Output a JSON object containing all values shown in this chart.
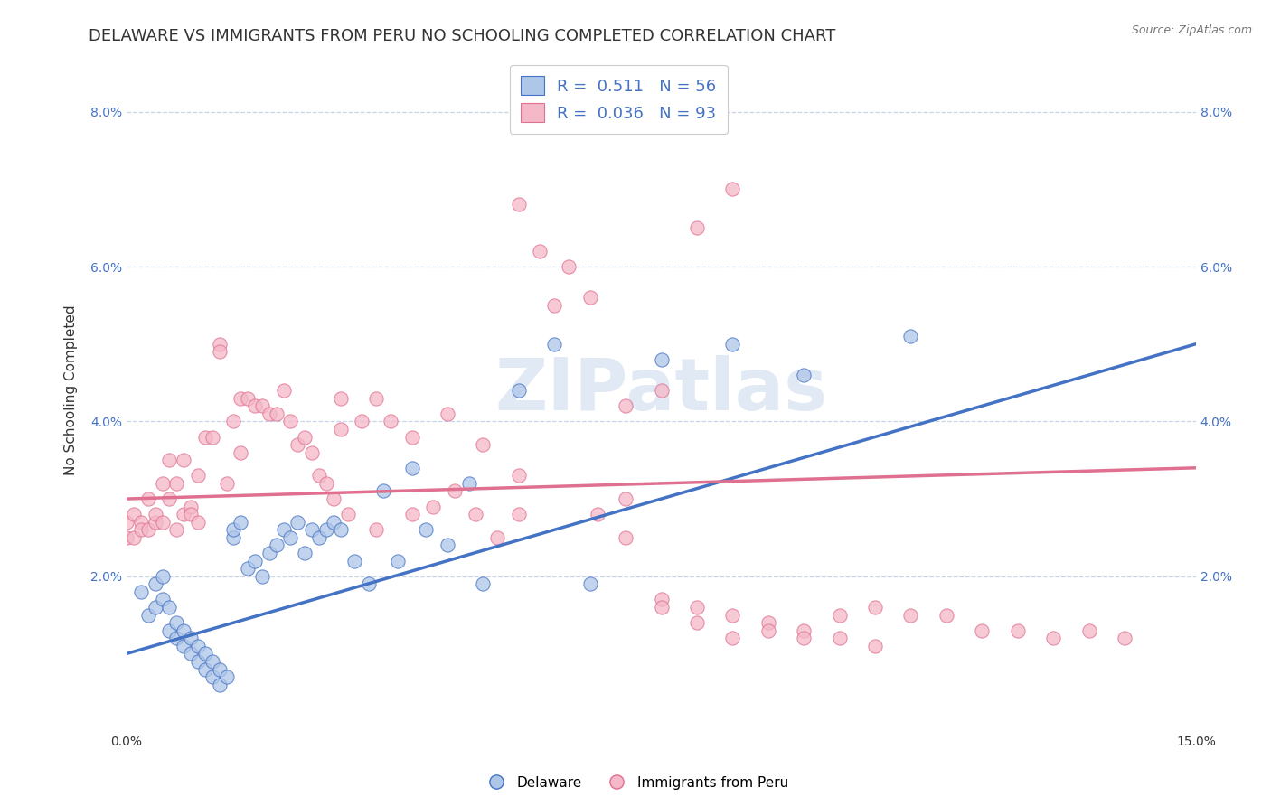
{
  "title": "DELAWARE VS IMMIGRANTS FROM PERU NO SCHOOLING COMPLETED CORRELATION CHART",
  "source": "Source: ZipAtlas.com",
  "ylabel": "No Schooling Completed",
  "xmin": 0.0,
  "xmax": 0.15,
  "ymin": 0.0,
  "ymax": 0.088,
  "yticks": [
    0.02,
    0.04,
    0.06,
    0.08
  ],
  "ytick_labels": [
    "2.0%",
    "4.0%",
    "6.0%",
    "8.0%"
  ],
  "blue_R": 0.511,
  "blue_N": 56,
  "pink_R": 0.036,
  "pink_N": 93,
  "blue_color": "#aec6e8",
  "blue_line_color": "#4472c4",
  "pink_color": "#f4b8c8",
  "pink_line_color": "#e07090",
  "watermark": "ZIPatlas",
  "title_fontsize": 13,
  "axis_label_fontsize": 11,
  "tick_fontsize": 10,
  "background_color": "#ffffff",
  "grid_color": "#c8d4e8",
  "blue_line_start_y": 0.01,
  "blue_line_end_y": 0.05,
  "pink_line_start_y": 0.03,
  "pink_line_end_y": 0.034,
  "blue_x": [
    0.002,
    0.003,
    0.004,
    0.004,
    0.005,
    0.005,
    0.006,
    0.006,
    0.007,
    0.007,
    0.008,
    0.008,
    0.009,
    0.009,
    0.01,
    0.01,
    0.011,
    0.011,
    0.012,
    0.012,
    0.013,
    0.013,
    0.014,
    0.015,
    0.015,
    0.016,
    0.017,
    0.018,
    0.019,
    0.02,
    0.021,
    0.022,
    0.023,
    0.024,
    0.025,
    0.026,
    0.027,
    0.028,
    0.029,
    0.03,
    0.032,
    0.034,
    0.036,
    0.038,
    0.04,
    0.042,
    0.045,
    0.048,
    0.05,
    0.055,
    0.06,
    0.065,
    0.075,
    0.085,
    0.095,
    0.11
  ],
  "blue_y": [
    0.018,
    0.015,
    0.019,
    0.016,
    0.02,
    0.017,
    0.016,
    0.013,
    0.014,
    0.012,
    0.013,
    0.011,
    0.012,
    0.01,
    0.011,
    0.009,
    0.01,
    0.008,
    0.009,
    0.007,
    0.008,
    0.006,
    0.007,
    0.025,
    0.026,
    0.027,
    0.021,
    0.022,
    0.02,
    0.023,
    0.024,
    0.026,
    0.025,
    0.027,
    0.023,
    0.026,
    0.025,
    0.026,
    0.027,
    0.026,
    0.022,
    0.019,
    0.031,
    0.022,
    0.034,
    0.026,
    0.024,
    0.032,
    0.019,
    0.044,
    0.05,
    0.019,
    0.048,
    0.05,
    0.046,
    0.051
  ],
  "pink_x": [
    0.0,
    0.0,
    0.001,
    0.001,
    0.002,
    0.002,
    0.003,
    0.003,
    0.004,
    0.004,
    0.005,
    0.005,
    0.006,
    0.006,
    0.007,
    0.007,
    0.008,
    0.008,
    0.009,
    0.009,
    0.01,
    0.01,
    0.011,
    0.012,
    0.013,
    0.013,
    0.014,
    0.015,
    0.016,
    0.016,
    0.017,
    0.018,
    0.019,
    0.02,
    0.021,
    0.022,
    0.023,
    0.024,
    0.025,
    0.026,
    0.027,
    0.028,
    0.029,
    0.03,
    0.031,
    0.033,
    0.035,
    0.037,
    0.04,
    0.043,
    0.046,
    0.049,
    0.052,
    0.055,
    0.058,
    0.062,
    0.066,
    0.07,
    0.075,
    0.08,
    0.085,
    0.09,
    0.095,
    0.1,
    0.105,
    0.11,
    0.115,
    0.12,
    0.125,
    0.13,
    0.135,
    0.14,
    0.07,
    0.075,
    0.08,
    0.085,
    0.09,
    0.095,
    0.1,
    0.105,
    0.08,
    0.085,
    0.055,
    0.06,
    0.065,
    0.07,
    0.075,
    0.03,
    0.035,
    0.04,
    0.045,
    0.05,
    0.055
  ],
  "pink_y": [
    0.027,
    0.025,
    0.028,
    0.025,
    0.027,
    0.026,
    0.03,
    0.026,
    0.027,
    0.028,
    0.032,
    0.027,
    0.035,
    0.03,
    0.026,
    0.032,
    0.028,
    0.035,
    0.029,
    0.028,
    0.033,
    0.027,
    0.038,
    0.038,
    0.05,
    0.049,
    0.032,
    0.04,
    0.036,
    0.043,
    0.043,
    0.042,
    0.042,
    0.041,
    0.041,
    0.044,
    0.04,
    0.037,
    0.038,
    0.036,
    0.033,
    0.032,
    0.03,
    0.043,
    0.028,
    0.04,
    0.026,
    0.04,
    0.028,
    0.029,
    0.031,
    0.028,
    0.025,
    0.028,
    0.062,
    0.06,
    0.028,
    0.03,
    0.017,
    0.016,
    0.015,
    0.014,
    0.013,
    0.015,
    0.016,
    0.015,
    0.015,
    0.013,
    0.013,
    0.012,
    0.013,
    0.012,
    0.025,
    0.016,
    0.014,
    0.012,
    0.013,
    0.012,
    0.012,
    0.011,
    0.065,
    0.07,
    0.068,
    0.055,
    0.056,
    0.042,
    0.044,
    0.039,
    0.043,
    0.038,
    0.041,
    0.037,
    0.033
  ]
}
